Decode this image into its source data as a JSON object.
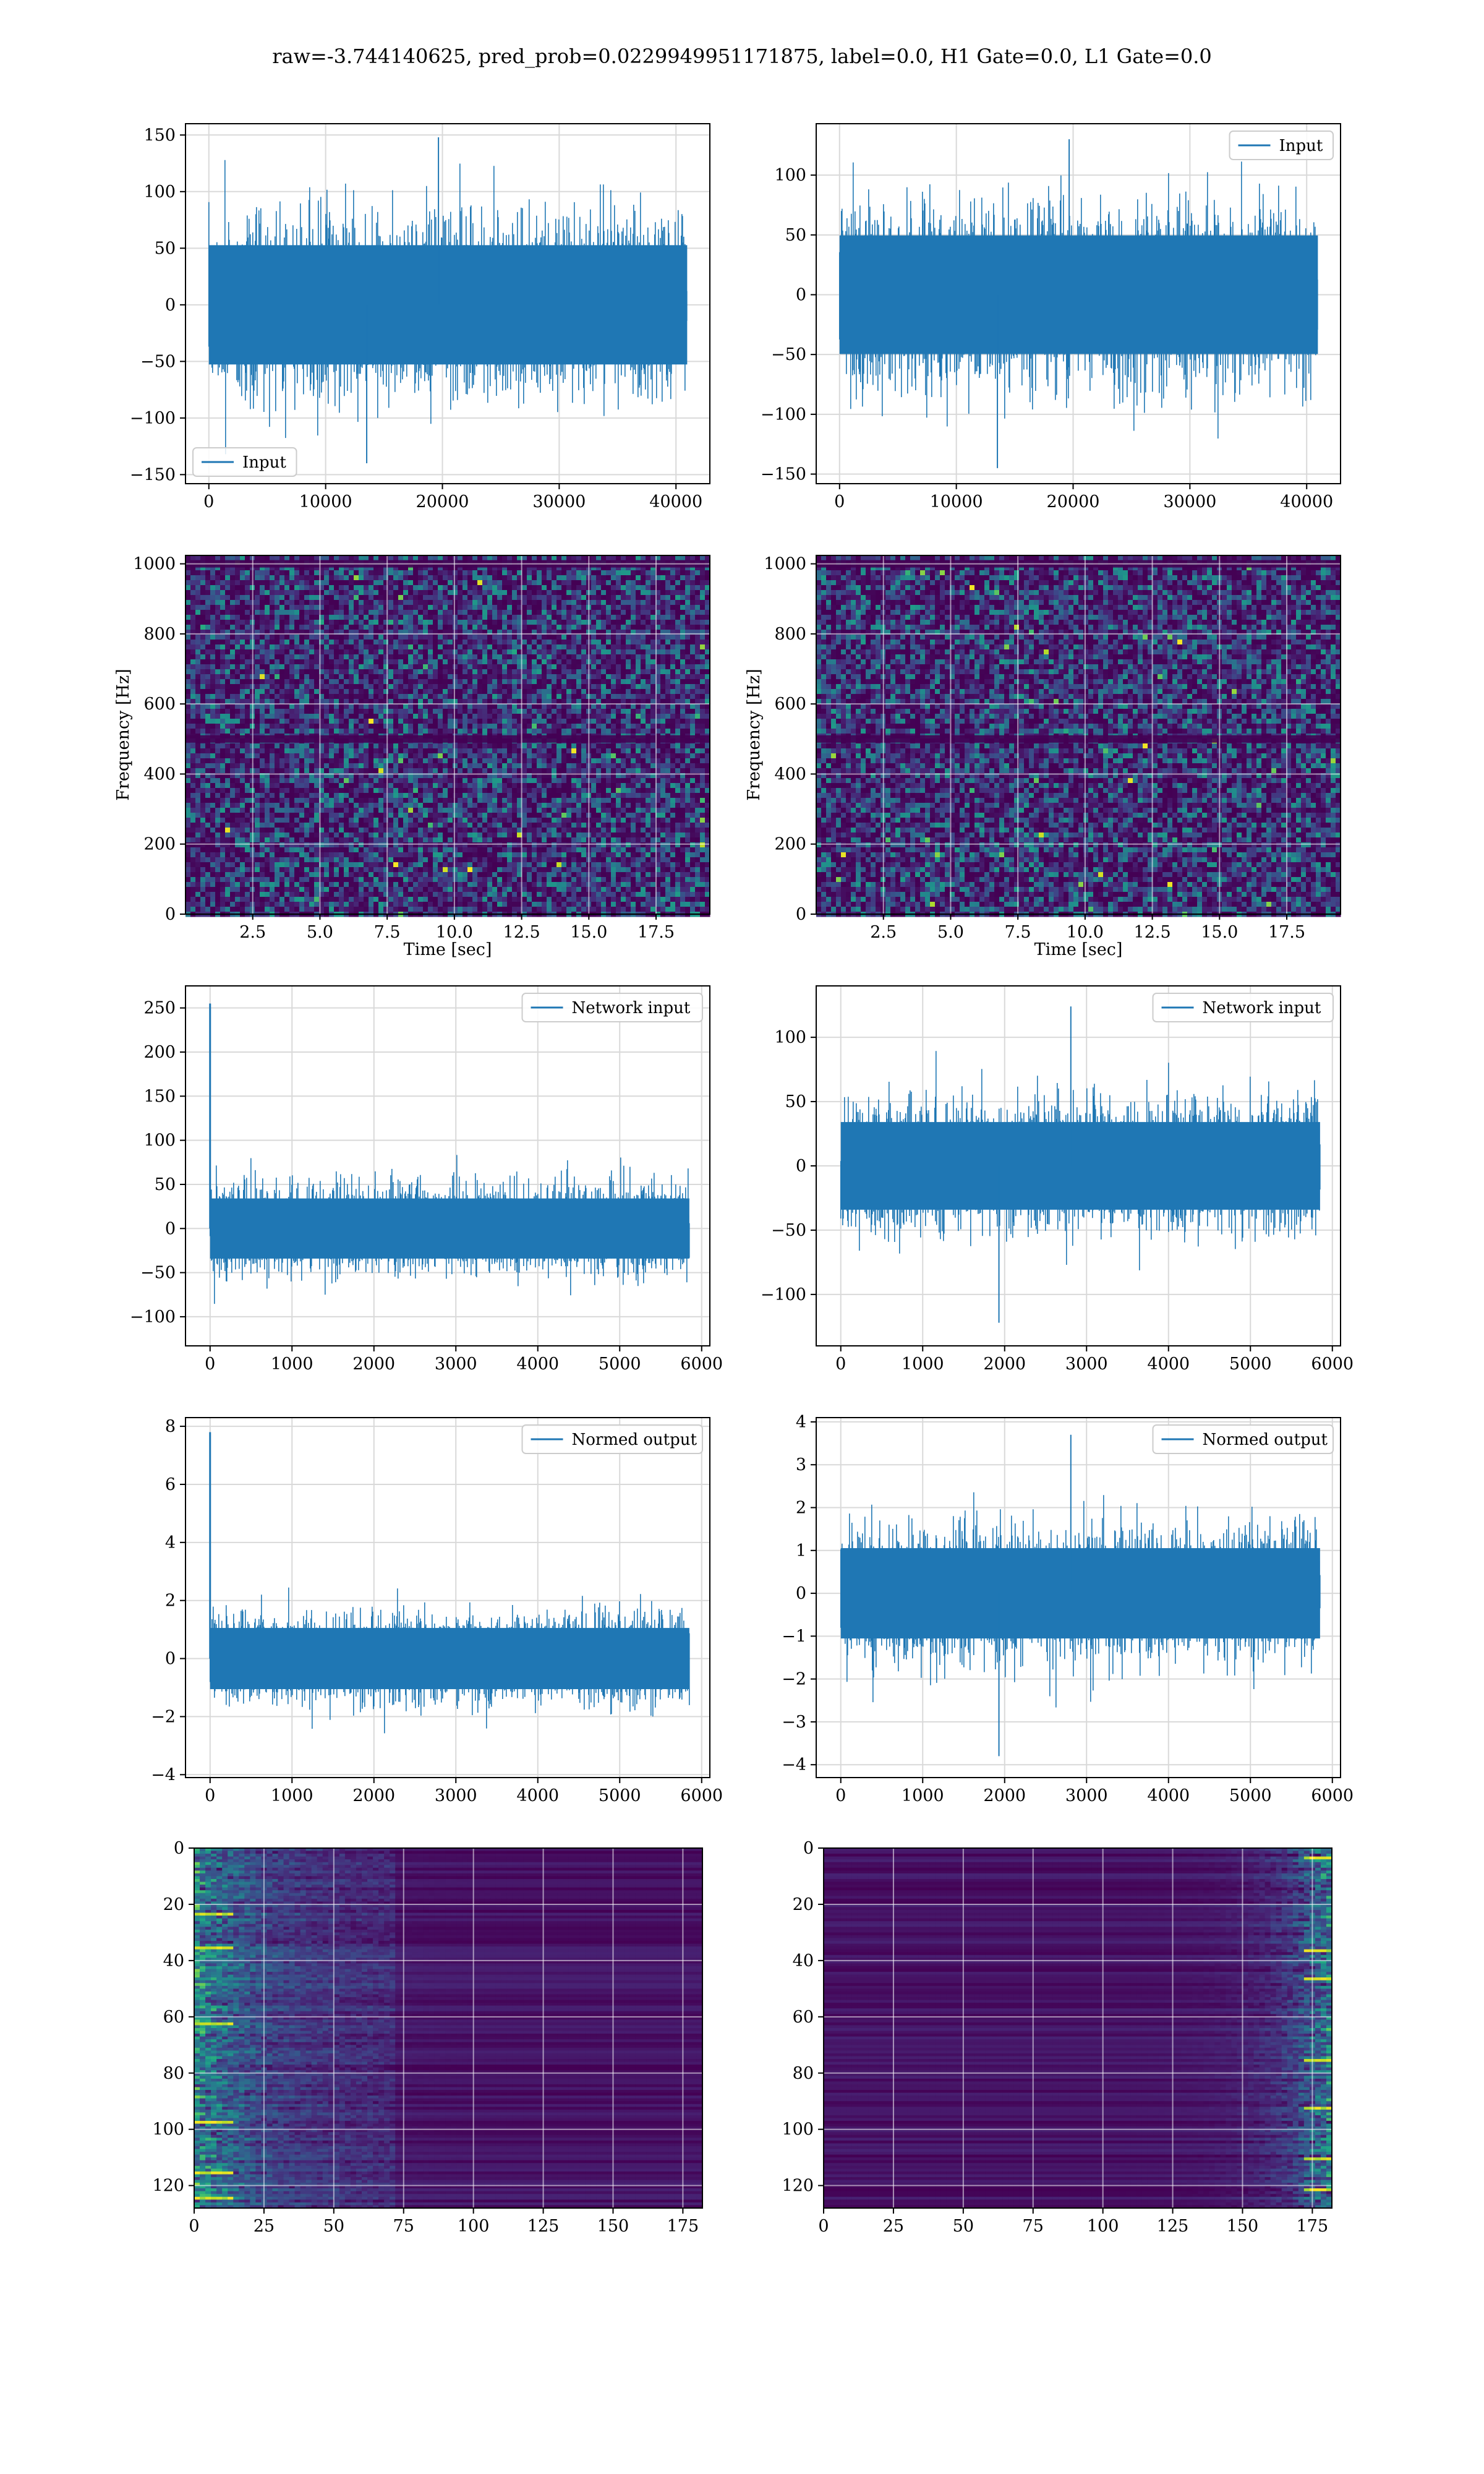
{
  "figure": {
    "title": "raw=-3.744140625, pred_prob=0.0229949951171875, label=0.0, H1 Gate=0.0, L1 Gate=0.0"
  },
  "colors": {
    "line": "#1f77b4",
    "grid": "#d9d9d9",
    "axes": "#000000",
    "viridis_low": "#440154",
    "viridis_high": "#fde725"
  },
  "chart_data": [
    {
      "id": "input-h1",
      "type": "line",
      "xlim": [
        -2000,
        42900
      ],
      "ylim": [
        -158,
        160
      ],
      "xticks": [
        0,
        10000,
        20000,
        30000,
        40000
      ],
      "yticks": [
        -150,
        -100,
        -50,
        0,
        50,
        100,
        150
      ],
      "xticklabels": [
        "0",
        "10000",
        "20000",
        "30000",
        "40000"
      ],
      "yticklabels": [
        "−150",
        "−100",
        "−50",
        "0",
        "50",
        "100",
        "150"
      ],
      "xlabel": "",
      "ylabel": "",
      "legend": [
        "Input"
      ],
      "legend_loc": "lower-left",
      "series": [
        {
          "name": "Input",
          "x_range": [
            0,
            40960
          ],
          "approx_amplitude": 85,
          "approx_extremes": [
            -140,
            148
          ]
        }
      ]
    },
    {
      "id": "input-l1",
      "type": "line",
      "xlim": [
        -2000,
        42900
      ],
      "ylim": [
        -158,
        143
      ],
      "xticks": [
        0,
        10000,
        20000,
        30000,
        40000
      ],
      "yticks": [
        -150,
        -100,
        -50,
        0,
        50,
        100
      ],
      "xticklabels": [
        "0",
        "10000",
        "20000",
        "30000",
        "40000"
      ],
      "yticklabels": [
        "−150",
        "−100",
        "−50",
        "0",
        "50",
        "100"
      ],
      "xlabel": "",
      "ylabel": "",
      "legend": [
        "Input"
      ],
      "legend_loc": "upper-right",
      "series": [
        {
          "name": "Input",
          "x_range": [
            0,
            40960
          ],
          "approx_amplitude": 80,
          "approx_extremes": [
            -145,
            130
          ]
        }
      ]
    },
    {
      "id": "spec-h1",
      "type": "heatmap",
      "xlim": [
        0,
        19.5
      ],
      "ylim": [
        0,
        1024
      ],
      "xticks": [
        2.5,
        5.0,
        7.5,
        10.0,
        12.5,
        15.0,
        17.5
      ],
      "yticks": [
        0,
        200,
        400,
        600,
        800,
        1000
      ],
      "xticklabels": [
        "2.5",
        "5.0",
        "7.5",
        "10.0",
        "12.5",
        "15.0",
        "17.5"
      ],
      "yticklabels": [
        "0",
        "200",
        "400",
        "600",
        "800",
        "1000"
      ],
      "xlabel": "Time [sec]",
      "ylabel": "Frequency [Hz]",
      "colormap": "viridis",
      "horizontal_lines_hz": [
        500,
        1000
      ]
    },
    {
      "id": "spec-l1",
      "type": "heatmap",
      "xlim": [
        0,
        19.5
      ],
      "ylim": [
        0,
        1024
      ],
      "xticks": [
        2.5,
        5.0,
        7.5,
        10.0,
        12.5,
        15.0,
        17.5
      ],
      "yticks": [
        0,
        200,
        400,
        600,
        800,
        1000
      ],
      "xticklabels": [
        "2.5",
        "5.0",
        "7.5",
        "10.0",
        "12.5",
        "15.0",
        "17.5"
      ],
      "yticklabels": [
        "0",
        "200",
        "400",
        "600",
        "800",
        "1000"
      ],
      "xlabel": "Time [sec]",
      "ylabel": "Frequency [Hz]",
      "colormap": "viridis",
      "horizontal_lines_hz": [
        500,
        1000
      ]
    },
    {
      "id": "net-h1",
      "type": "line",
      "xlim": [
        -300,
        6100
      ],
      "ylim": [
        -133,
        275
      ],
      "xticks": [
        0,
        1000,
        2000,
        3000,
        4000,
        5000,
        6000
      ],
      "yticks": [
        -100,
        -50,
        0,
        50,
        100,
        150,
        200,
        250
      ],
      "xticklabels": [
        "0",
        "1000",
        "2000",
        "3000",
        "4000",
        "5000",
        "6000"
      ],
      "yticklabels": [
        "−100",
        "−50",
        "0",
        "50",
        "100",
        "150",
        "200",
        "250"
      ],
      "xlabel": "",
      "ylabel": "",
      "legend": [
        "Network input"
      ],
      "legend_loc": "upper-right",
      "series": [
        {
          "name": "Network input",
          "x_range": [
            0,
            5850
          ],
          "approx_amplitude": 55,
          "spike": {
            "x": 0,
            "y": 255
          }
        }
      ]
    },
    {
      "id": "net-l1",
      "type": "line",
      "xlim": [
        -300,
        6100
      ],
      "ylim": [
        -140,
        140
      ],
      "xticks": [
        0,
        1000,
        2000,
        3000,
        4000,
        5000,
        6000
      ],
      "yticks": [
        -100,
        -50,
        0,
        50,
        100
      ],
      "xticklabels": [
        "0",
        "1000",
        "2000",
        "3000",
        "4000",
        "5000",
        "6000"
      ],
      "yticklabels": [
        "−100",
        "−50",
        "0",
        "50",
        "100"
      ],
      "xlabel": "",
      "ylabel": "",
      "legend": [
        "Network input"
      ],
      "legend_loc": "upper-right",
      "series": [
        {
          "name": "Network input",
          "x_range": [
            0,
            5850
          ],
          "approx_amplitude": 55,
          "approx_extremes": [
            -122,
            124
          ]
        }
      ]
    },
    {
      "id": "norm-h1",
      "type": "line",
      "xlim": [
        -300,
        6100
      ],
      "ylim": [
        -4.1,
        8.3
      ],
      "xticks": [
        0,
        1000,
        2000,
        3000,
        4000,
        5000,
        6000
      ],
      "yticks": [
        -4,
        -2,
        0,
        2,
        4,
        6,
        8
      ],
      "xticklabels": [
        "0",
        "1000",
        "2000",
        "3000",
        "4000",
        "5000",
        "6000"
      ],
      "yticklabels": [
        "−4",
        "−2",
        "0",
        "2",
        "4",
        "6",
        "8"
      ],
      "xlabel": "",
      "ylabel": "",
      "legend": [
        "Normed output"
      ],
      "legend_loc": "upper-right",
      "series": [
        {
          "name": "Normed output",
          "x_range": [
            0,
            5850
          ],
          "approx_amplitude": 1.7,
          "spike": {
            "x": 0,
            "y": 7.8
          }
        }
      ]
    },
    {
      "id": "norm-l1",
      "type": "line",
      "xlim": [
        -300,
        6100
      ],
      "ylim": [
        -4.3,
        4.1
      ],
      "xticks": [
        0,
        1000,
        2000,
        3000,
        4000,
        5000,
        6000
      ],
      "yticks": [
        -4,
        -3,
        -2,
        -1,
        0,
        1,
        2,
        3,
        4
      ],
      "xticklabels": [
        "0",
        "1000",
        "2000",
        "3000",
        "4000",
        "5000",
        "6000"
      ],
      "yticklabels": [
        "−4",
        "−3",
        "−2",
        "−1",
        "0",
        "1",
        "2",
        "3",
        "4"
      ],
      "xlabel": "",
      "ylabel": "",
      "legend": [
        "Normed output"
      ],
      "legend_loc": "upper-right",
      "series": [
        {
          "name": "Normed output",
          "x_range": [
            0,
            5850
          ],
          "approx_amplitude": 1.7,
          "approx_extremes": [
            -3.8,
            3.7
          ]
        }
      ]
    },
    {
      "id": "feat-h1",
      "type": "heatmap",
      "xlim": [
        0,
        182
      ],
      "ylim": [
        128,
        0
      ],
      "xticks": [
        0,
        25,
        50,
        75,
        100,
        125,
        150,
        175
      ],
      "yticks": [
        0,
        20,
        40,
        60,
        80,
        100,
        120
      ],
      "xticklabels": [
        "0",
        "25",
        "50",
        "75",
        "100",
        "125",
        "150",
        "175"
      ],
      "yticklabels": [
        "0",
        "20",
        "40",
        "60",
        "80",
        "100",
        "120"
      ],
      "xlabel": "",
      "ylabel": "",
      "colormap": "viridis",
      "bright_region": "left",
      "hot_rows": [
        23,
        35,
        62,
        97,
        115,
        124
      ]
    },
    {
      "id": "feat-l1",
      "type": "heatmap",
      "xlim": [
        0,
        182
      ],
      "ylim": [
        128,
        0
      ],
      "xticks": [
        0,
        25,
        50,
        75,
        100,
        125,
        150,
        175
      ],
      "yticks": [
        0,
        20,
        40,
        60,
        80,
        100,
        120
      ],
      "xticklabels": [
        "0",
        "25",
        "50",
        "75",
        "100",
        "125",
        "150",
        "175"
      ],
      "yticklabels": [
        "0",
        "20",
        "40",
        "60",
        "80",
        "100",
        "120"
      ],
      "xlabel": "",
      "ylabel": "",
      "colormap": "viridis",
      "bright_region": "right",
      "hot_rows": [
        3,
        36,
        46,
        75,
        92,
        110,
        121
      ]
    }
  ]
}
